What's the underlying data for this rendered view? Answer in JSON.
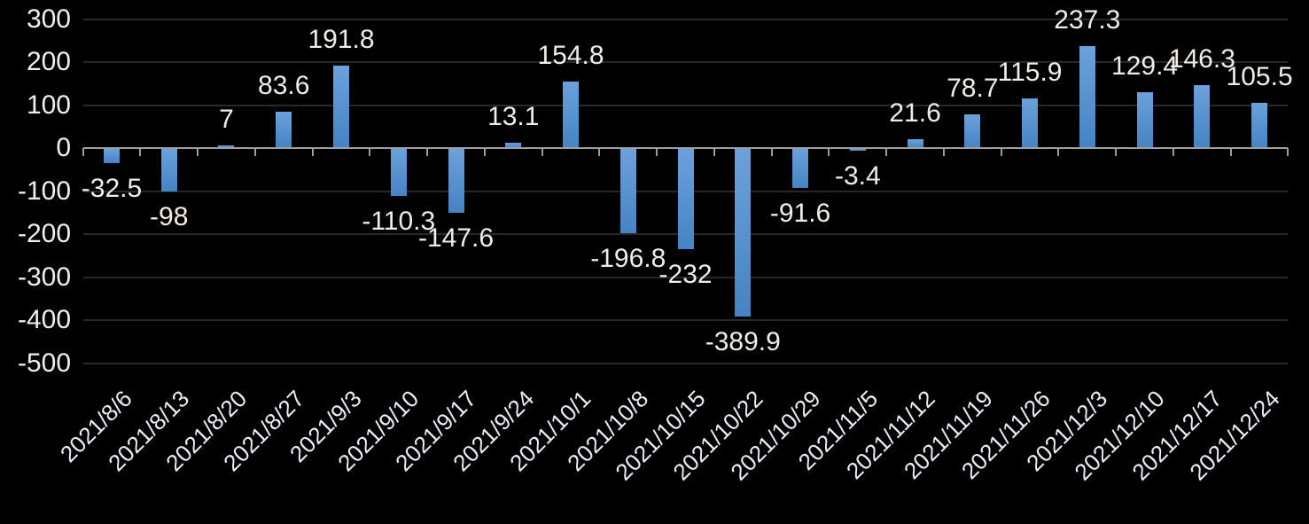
{
  "chart_data": {
    "type": "bar",
    "title": "",
    "xlabel": "",
    "ylabel": "",
    "categories": [
      "2021/8/6",
      "2021/8/13",
      "2021/8/20",
      "2021/8/27",
      "2021/9/3",
      "2021/9/10",
      "2021/9/17",
      "2021/9/24",
      "2021/10/1",
      "2021/10/8",
      "2021/10/15",
      "2021/10/22",
      "2021/10/29",
      "2021/11/5",
      "2021/11/12",
      "2021/11/19",
      "2021/11/26",
      "2021/12/3",
      "2021/12/10",
      "2021/12/17",
      "2021/12/24"
    ],
    "values": [
      -32.5,
      -98,
      7,
      83.6,
      191.8,
      -110.3,
      -147.6,
      13.1,
      154.8,
      -196.8,
      -232,
      -389.9,
      -91.6,
      -3.4,
      21.6,
      78.7,
      115.9,
      237.3,
      129.4,
      146.3,
      105.5
    ],
    "value_labels": [
      "-32.5",
      "-98",
      "7",
      "83.6",
      "191.8",
      "-110.3",
      "-147.6",
      "13.1",
      "154.8",
      "-196.8",
      "-232",
      "-389.9",
      "-91.6",
      "-3.4",
      "21.6",
      "78.7",
      "115.9",
      "237.3",
      "129.4",
      "146.3",
      "105.5"
    ],
    "y_ticks": [
      "300",
      "200",
      "100",
      "0",
      "-100",
      "-200",
      "-300",
      "-400",
      "-500"
    ],
    "y_tick_values": [
      300,
      200,
      100,
      0,
      -100,
      -200,
      -300,
      -400,
      -500
    ],
    "ylim": [
      -500,
      300
    ],
    "grid": true,
    "legend": false,
    "label_position": "outside-end"
  },
  "colors": {
    "background": "#000000",
    "bar_gradient_top": "#6ba1dc",
    "bar_gradient_bottom": "#4583c4",
    "gridline": "#282828",
    "axis": "#a0a0a0",
    "text": "#efefef",
    "x_label_text": "#e9eef6"
  }
}
